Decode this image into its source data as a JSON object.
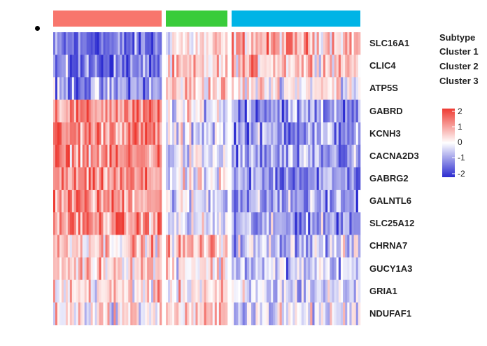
{
  "chart_data": {
    "type": "heatmap",
    "genes": [
      "SLC16A1",
      "CLIC4",
      "ATP5S",
      "GABRD",
      "KCNH3",
      "CACNA2D3",
      "GABRG2",
      "GALNTL6",
      "SLC25A12",
      "CHRNA7",
      "GUCY1A3",
      "GRIA1",
      "NDUFAF1"
    ],
    "clusters": [
      {
        "name": "Cluster 1",
        "color": "#f8766d",
        "n_samples": 52
      },
      {
        "name": "Cluster 2",
        "color": "#39cc3a",
        "n_samples": 29
      },
      {
        "name": "Cluster 3",
        "color": "#00b4e6",
        "n_samples": 59
      }
    ],
    "mean_expression": {
      "SLC16A1": [
        -1.4,
        0.2,
        0.8
      ],
      "CLIC4": [
        -1.3,
        0.3,
        0.7
      ],
      "ATP5S": [
        -1.0,
        0.5,
        0.2
      ],
      "GABRD": [
        1.1,
        -0.1,
        -0.9
      ],
      "KCNH3": [
        1.2,
        -0.3,
        -0.9
      ],
      "CACNA2D3": [
        1.1,
        -0.3,
        -1.0
      ],
      "GABRG2": [
        1.0,
        -0.2,
        -1.0
      ],
      "GALNTL6": [
        1.1,
        -0.3,
        -0.9
      ],
      "SLC25A12": [
        1.1,
        -0.3,
        -0.9
      ],
      "CHRNA7": [
        0.6,
        0.6,
        -0.5
      ],
      "GUCY1A3": [
        0.6,
        0.3,
        -0.5
      ],
      "GRIA1": [
        0.3,
        0.3,
        -0.4
      ],
      "NDUFAF1": [
        0.2,
        0.4,
        -0.2
      ]
    },
    "colorbar": {
      "min": -2,
      "max": 2,
      "ticks": [
        "2",
        "1",
        "0",
        "-1",
        "-2"
      ],
      "low_color": "#2b2bd0",
      "mid_color": "#ffffff",
      "high_color": "#ee3b33"
    },
    "legend": {
      "title": "Subtype",
      "entries": [
        "Cluster 1",
        "Cluster 2",
        "Cluster 3"
      ]
    }
  }
}
